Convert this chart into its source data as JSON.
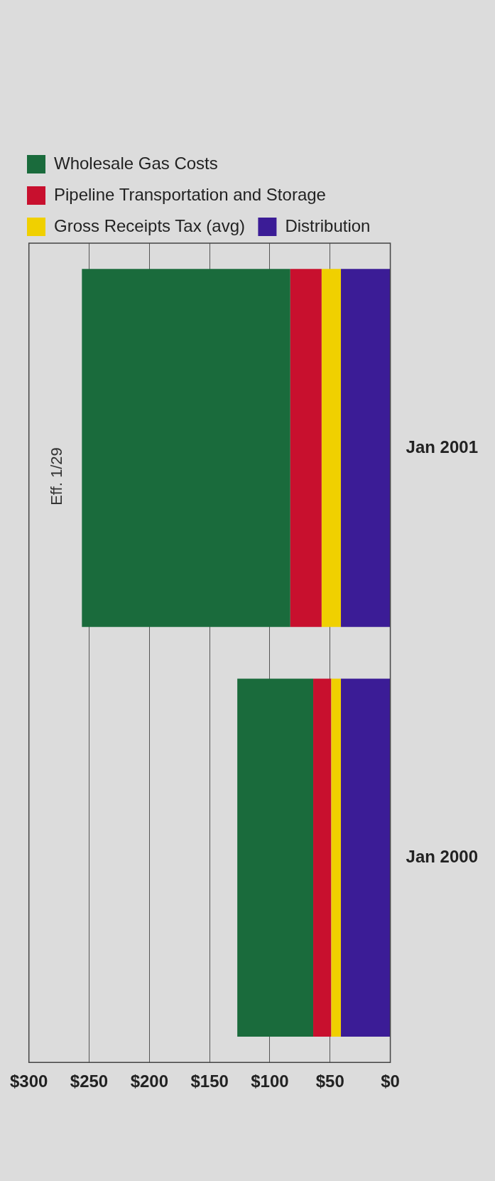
{
  "chart_data": {
    "type": "bar",
    "stacked": true,
    "orientation": "horizontal",
    "categories": [
      "Jan 2001",
      "Jan 2000"
    ],
    "series": [
      {
        "name": "Distribution",
        "color": "#3b1c96",
        "values": [
          41,
          41
        ]
      },
      {
        "name": "Gross Receipts Tax (avg)",
        "color": "#f0d000",
        "values": [
          16,
          8
        ]
      },
      {
        "name": "Pipeline Transportation and Storage",
        "color": "#c8102e",
        "values": [
          26,
          15
        ]
      },
      {
        "name": "Wholesale Gas Costs",
        "color": "#1a6b3c",
        "values": [
          173,
          63
        ]
      }
    ],
    "xlim": [
      300,
      0
    ],
    "xticks": [
      {
        "value": 300,
        "label": "$300"
      },
      {
        "value": 250,
        "label": "$250"
      },
      {
        "value": 200,
        "label": "$200"
      },
      {
        "value": 150,
        "label": "$150"
      },
      {
        "value": 100,
        "label": "$100"
      },
      {
        "value": 50,
        "label": "$50"
      },
      {
        "value": 0,
        "label": "$0"
      }
    ],
    "grid": "x",
    "legend": "top",
    "annotations": [
      "Eff. 1/29"
    ]
  }
}
